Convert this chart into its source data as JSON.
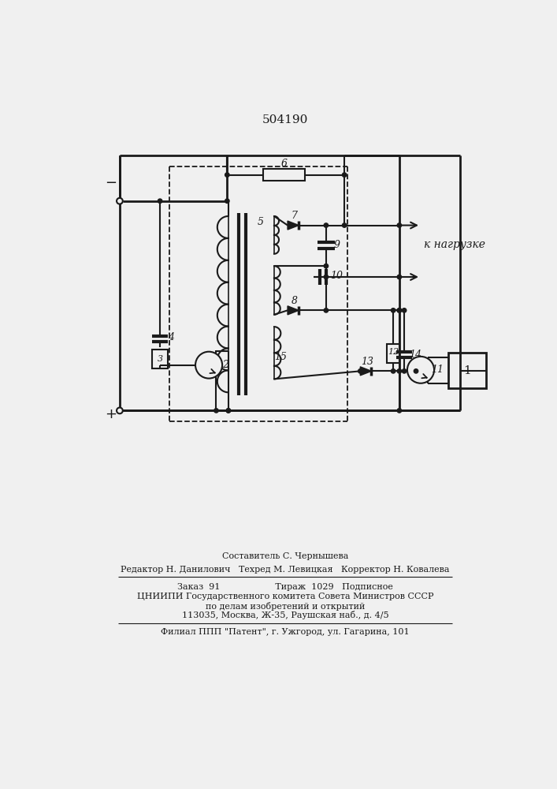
{
  "title": "504190",
  "bg_color": "#f0f0f0",
  "line_color": "#1a1a1a",
  "text_color": "#1a1a1a",
  "footer_lines": [
    "Составитель С. Чернышева",
    "Редактор Н. Данилович   Техред М. Левицкая   Корректор Н. Ковалева",
    "Заказ  91                    Тираж  1029   Подписное",
    "ЦНИИПИ Государственного комитета Совета Министров СССР",
    "по делам изобретений и открытий",
    "113035, Москва, Ж-35, Раушская наб., д. 4/5",
    "Филиал ППП \"Патент\", г. Ужгород, ул. Гагарина, 101"
  ]
}
